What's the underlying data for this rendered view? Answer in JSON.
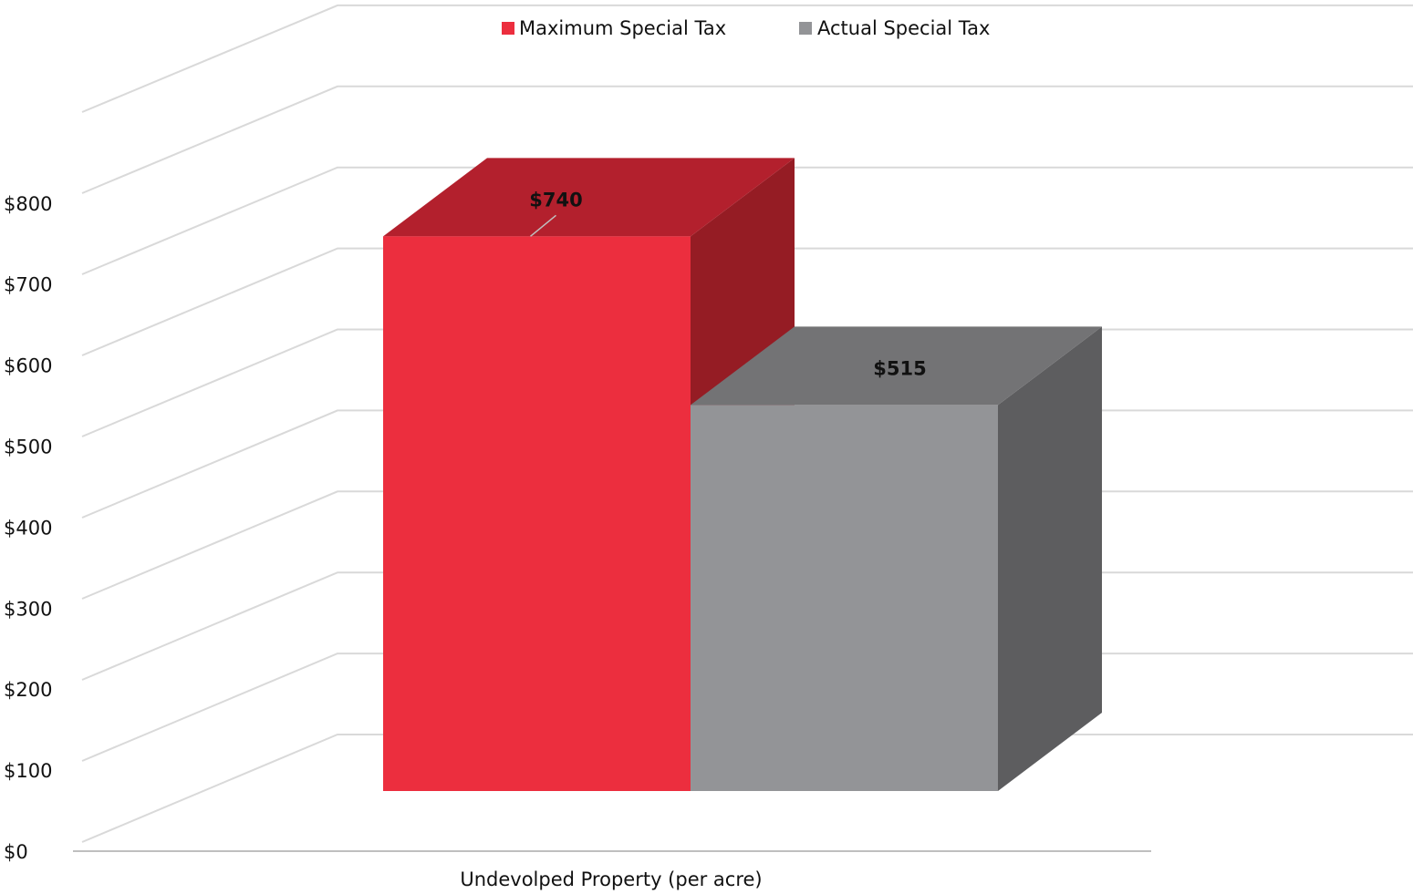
{
  "chart_data": {
    "type": "bar",
    "categories": [
      "Undevolped Property (per acre)"
    ],
    "series": [
      {
        "name": "Maximum Special Tax",
        "values": [
          740
        ],
        "label": "$740",
        "color": "#ec2e3e",
        "top_color": "#b3202d",
        "side_color": "#951c24"
      },
      {
        "name": "Actual Special Tax",
        "values": [
          515
        ],
        "label": "$515",
        "color": "#939497",
        "top_color": "#737375",
        "side_color": "#5d5d5f"
      }
    ],
    "ylim": [
      0,
      800
    ],
    "yticks": [
      "$0",
      "$100",
      "$200",
      "$300",
      "$400",
      "$500",
      "$600",
      "$700",
      "$800"
    ],
    "grid": true,
    "legend": "top",
    "three_d": true
  }
}
